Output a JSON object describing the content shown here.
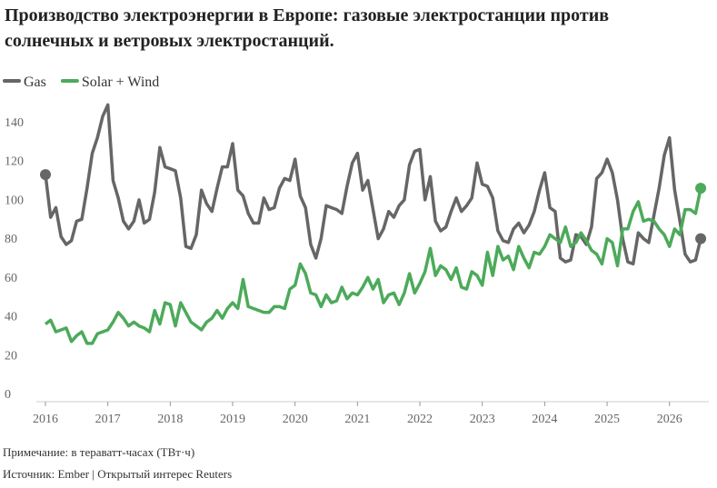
{
  "chart_data": {
    "type": "line",
    "title": [
      "Производство электроэнергии в Европе: газовые электростанции против",
      "солнечных и ветровых электростанций."
    ],
    "note": "Примечание: в тераватт-часах (ТВт·ч)",
    "source": "Источник: Ember | Открытый интерес Reuters",
    "x": [
      2016.0,
      2016.083,
      2016.167,
      2016.25,
      2016.333,
      2016.417,
      2016.5,
      2016.583,
      2016.667,
      2016.75,
      2016.833,
      2016.917,
      2017.0,
      2017.083,
      2017.167,
      2017.25,
      2017.333,
      2017.417,
      2017.5,
      2017.583,
      2017.667,
      2017.75,
      2017.833,
      2017.917,
      2018.0,
      2018.083,
      2018.167,
      2018.25,
      2018.333,
      2018.417,
      2018.5,
      2018.583,
      2018.667,
      2018.75,
      2018.833,
      2018.917,
      2019.0,
      2019.083,
      2019.167,
      2019.25,
      2019.333,
      2019.417,
      2019.5,
      2019.583,
      2019.667,
      2019.75,
      2019.833,
      2019.917,
      2020.0,
      2020.083,
      2020.167,
      2020.25,
      2020.333,
      2020.417,
      2020.5,
      2020.583,
      2020.667,
      2020.75,
      2020.833,
      2020.917,
      2021.0,
      2021.083,
      2021.167,
      2021.25,
      2021.333,
      2021.417,
      2021.5,
      2021.583,
      2021.667,
      2021.75,
      2021.833,
      2021.917,
      2022.0,
      2022.083,
      2022.167,
      2022.25,
      2022.333,
      2022.417,
      2022.5,
      2022.583,
      2022.667,
      2022.75,
      2022.833,
      2022.917,
      2023.0,
      2023.083,
      2023.167,
      2023.25,
      2023.333,
      2023.417,
      2023.5,
      2023.583,
      2023.667,
      2023.75,
      2023.833,
      2023.917,
      2024.0,
      2024.083,
      2024.167,
      2024.25,
      2024.333,
      2024.417,
      2024.5,
      2024.583,
      2024.667,
      2024.75,
      2024.833,
      2024.917,
      2025.0,
      2025.083,
      2025.167,
      2025.25,
      2025.333,
      2025.417,
      2025.5,
      2025.583,
      2025.667,
      2025.75,
      2025.833,
      2025.917,
      2026.0,
      2026.083,
      2026.167,
      2026.25,
      2026.333,
      2026.417,
      2026.5
    ],
    "series": [
      {
        "name": "Gas",
        "color": "#666666",
        "values": [
          117,
          95,
          100,
          85,
          81,
          83,
          93,
          94,
          110,
          128,
          136,
          147,
          153,
          114,
          105,
          93,
          89,
          93,
          104,
          92,
          94,
          108,
          131,
          121,
          120,
          119,
          105,
          80,
          79,
          86,
          109,
          102,
          98,
          110,
          121,
          121,
          133,
          109,
          106,
          97,
          92,
          92,
          105,
          99,
          100,
          110,
          115,
          114,
          125,
          106,
          100,
          81,
          74,
          84,
          101,
          100,
          99,
          97,
          111,
          123,
          128,
          109,
          114,
          99,
          84,
          89,
          98,
          95,
          101,
          104,
          122,
          129,
          130,
          104,
          116,
          93,
          88,
          90,
          98,
          105,
          98,
          101,
          105,
          123,
          112,
          111,
          105,
          88,
          83,
          82,
          89,
          92,
          87,
          91,
          98,
          109,
          118,
          100,
          98,
          74,
          72,
          73,
          86,
          85,
          81,
          90,
          115,
          118,
          125,
          118,
          104,
          84,
          72,
          71,
          87,
          84,
          82,
          96,
          110,
          127,
          136,
          109,
          93,
          76,
          72,
          73,
          84
        ]
      },
      {
        "name": "Solar + Wind",
        "color": "#4caa5a",
        "values": [
          40,
          42,
          36,
          37,
          38,
          31,
          34,
          36,
          30,
          30,
          35,
          36,
          37,
          41,
          46,
          43,
          39,
          41,
          39,
          38,
          36,
          47,
          40,
          51,
          50,
          39,
          51,
          46,
          41,
          39,
          37,
          41,
          43,
          47,
          43,
          48,
          51,
          48,
          63,
          49,
          48,
          47,
          46,
          46,
          49,
          49,
          48,
          58,
          60,
          71,
          66,
          56,
          55,
          49,
          55,
          51,
          52,
          59,
          53,
          56,
          55,
          59,
          64,
          58,
          63,
          51,
          55,
          56,
          50,
          56,
          66,
          56,
          61,
          67,
          79,
          65,
          70,
          68,
          63,
          69,
          59,
          58,
          67,
          65,
          60,
          77,
          65,
          80,
          73,
          75,
          68,
          80,
          74,
          69,
          77,
          76,
          80,
          86,
          84,
          82,
          90,
          80,
          82,
          87,
          83,
          78,
          76,
          71,
          84,
          82,
          70,
          89,
          89,
          98,
          103,
          93,
          94,
          93,
          89,
          86,
          80,
          89,
          86,
          99,
          99,
          97,
          110
        ]
      }
    ],
    "xlim": [
      2016,
      2026.63
    ],
    "xticks": [
      2016,
      2017,
      2018,
      2019,
      2020,
      2021,
      2022,
      2023,
      2024,
      2025,
      2026
    ],
    "ylim": [
      0,
      155
    ],
    "yticks": [
      0,
      20,
      40,
      60,
      80,
      100,
      120,
      140
    ]
  }
}
